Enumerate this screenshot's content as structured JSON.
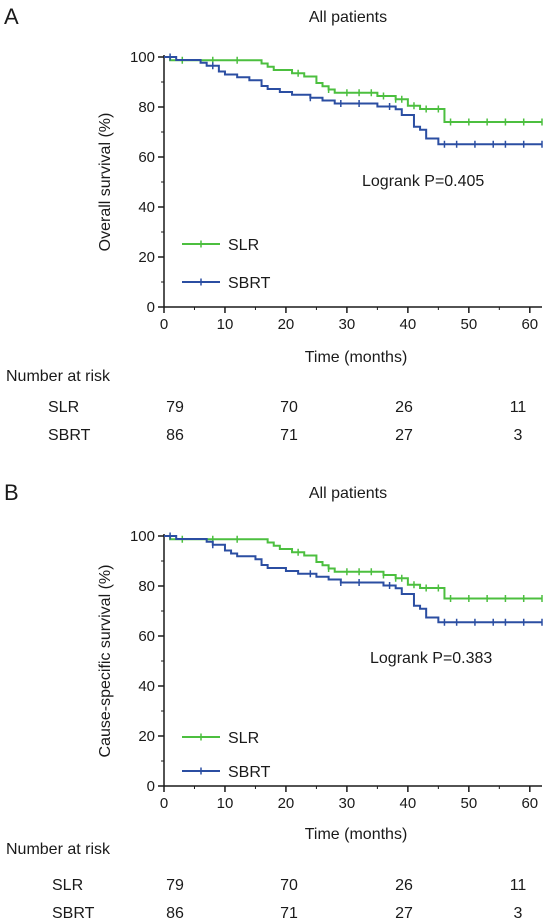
{
  "chart_data": [
    {
      "type": "line",
      "subtype": "kaplan-meier",
      "panel_label": "A",
      "title": "All patients",
      "xlabel": "Time (months)",
      "ylabel": "Overall survival (%)",
      "xlim": [
        0,
        62
      ],
      "ylim": [
        0,
        100
      ],
      "xticks": [
        "0",
        "10",
        "20",
        "30",
        "40",
        "50",
        "60"
      ],
      "yticks": [
        "0",
        "20",
        "40",
        "60",
        "80",
        "100"
      ],
      "annotation": "Logrank P=0.405",
      "grid": false,
      "legend_position": "bottom-left",
      "colors": {
        "SLR": "#4cbf3f",
        "SBRT": "#2b4ea2"
      },
      "series": [
        {
          "name": "SLR",
          "steps": [
            [
              0,
              100
            ],
            [
              1,
              98.7
            ],
            [
              16,
              97.4
            ],
            [
              17,
              96.1
            ],
            [
              18,
              94.8
            ],
            [
              21,
              93.5
            ],
            [
              23,
              92.2
            ],
            [
              25,
              89.6
            ],
            [
              26,
              88.3
            ],
            [
              27,
              87
            ],
            [
              28,
              85.7
            ],
            [
              35,
              84.4
            ],
            [
              38,
              83.1
            ],
            [
              40,
              80.5
            ],
            [
              42,
              79.2
            ],
            [
              46,
              74
            ],
            [
              62,
              74
            ]
          ],
          "censor_x": [
            3,
            8,
            12,
            22,
            27,
            30,
            32,
            34,
            36,
            38,
            39,
            41,
            43,
            45,
            47,
            50,
            53,
            56,
            59,
            62
          ]
        },
        {
          "name": "SBRT",
          "steps": [
            [
              0,
              100
            ],
            [
              2,
              98.8
            ],
            [
              6,
              97.7
            ],
            [
              7,
              96.5
            ],
            [
              9,
              94.2
            ],
            [
              10,
              93
            ],
            [
              12,
              91.9
            ],
            [
              14,
              90.7
            ],
            [
              16,
              88.4
            ],
            [
              17,
              87.2
            ],
            [
              19,
              86
            ],
            [
              21,
              84.9
            ],
            [
              24,
              83.7
            ],
            [
              26,
              82.6
            ],
            [
              28,
              81.4
            ],
            [
              35,
              80.2
            ],
            [
              38,
              79.1
            ],
            [
              39,
              76.8
            ],
            [
              41,
              72.1
            ],
            [
              42,
              70.9
            ],
            [
              43,
              67.4
            ],
            [
              45,
              65.1
            ],
            [
              62,
              65.1
            ]
          ],
          "censor_x": [
            1,
            8,
            24,
            29,
            32,
            37,
            46,
            48,
            51,
            54,
            56,
            59,
            62
          ]
        }
      ],
      "risk_table": {
        "title": "Number at risk",
        "rows": [
          {
            "label": "SLR",
            "values": [
              "79",
              "70",
              "26",
              "11"
            ]
          },
          {
            "label": "SBRT",
            "values": [
              "86",
              "71",
              "27",
              "3"
            ]
          }
        ]
      }
    },
    {
      "type": "line",
      "subtype": "kaplan-meier",
      "panel_label": "B",
      "title": "All patients",
      "xlabel": "Time (months)",
      "ylabel": "Cause-specific survival (%)",
      "xlim": [
        0,
        62
      ],
      "ylim": [
        0,
        100
      ],
      "xticks": [
        "0",
        "10",
        "20",
        "30",
        "40",
        "50",
        "60"
      ],
      "yticks": [
        "0",
        "20",
        "40",
        "60",
        "80",
        "100"
      ],
      "annotation": "Logrank P=0.383",
      "grid": false,
      "legend_position": "bottom-left",
      "colors": {
        "SLR": "#4cbf3f",
        "SBRT": "#2b4ea2"
      },
      "series": [
        {
          "name": "SLR",
          "steps": [
            [
              0,
              100
            ],
            [
              1,
              98.7
            ],
            [
              17,
              97.4
            ],
            [
              18,
              96.1
            ],
            [
              19,
              94.8
            ],
            [
              21,
              93.5
            ],
            [
              23,
              92.2
            ],
            [
              25,
              89.6
            ],
            [
              26,
              88.3
            ],
            [
              27,
              87
            ],
            [
              28,
              85.7
            ],
            [
              36,
              84.4
            ],
            [
              38,
              83.1
            ],
            [
              40,
              80.5
            ],
            [
              42,
              79.2
            ],
            [
              46,
              75
            ],
            [
              62,
              75
            ]
          ],
          "censor_x": [
            3,
            8,
            12,
            22,
            27,
            30,
            32,
            34,
            36,
            38,
            39,
            41,
            43,
            45,
            47,
            50,
            53,
            56,
            59,
            62
          ]
        },
        {
          "name": "SBRT",
          "steps": [
            [
              0,
              100
            ],
            [
              2,
              98.8
            ],
            [
              7,
              97.7
            ],
            [
              8,
              96.5
            ],
            [
              10,
              94.2
            ],
            [
              11,
              93
            ],
            [
              12,
              91.9
            ],
            [
              15,
              90.7
            ],
            [
              16,
              88.4
            ],
            [
              17,
              87.2
            ],
            [
              20,
              86
            ],
            [
              22,
              84.9
            ],
            [
              25,
              83.7
            ],
            [
              27,
              82.6
            ],
            [
              29,
              81.4
            ],
            [
              36,
              80.2
            ],
            [
              38,
              79.1
            ],
            [
              39,
              76.8
            ],
            [
              41,
              72.1
            ],
            [
              42,
              70.9
            ],
            [
              43,
              67.4
            ],
            [
              45,
              65.5
            ],
            [
              62,
              65.5
            ]
          ],
          "censor_x": [
            1,
            8,
            24,
            29,
            32,
            37,
            46,
            48,
            51,
            54,
            56,
            59,
            62
          ]
        }
      ],
      "risk_table": {
        "title": "Number at risk",
        "rows": [
          {
            "label": "SLR",
            "values": [
              "79",
              "70",
              "26",
              "11"
            ]
          },
          {
            "label": "SBRT",
            "values": [
              "86",
              "71",
              "27",
              "3"
            ]
          }
        ]
      }
    }
  ]
}
